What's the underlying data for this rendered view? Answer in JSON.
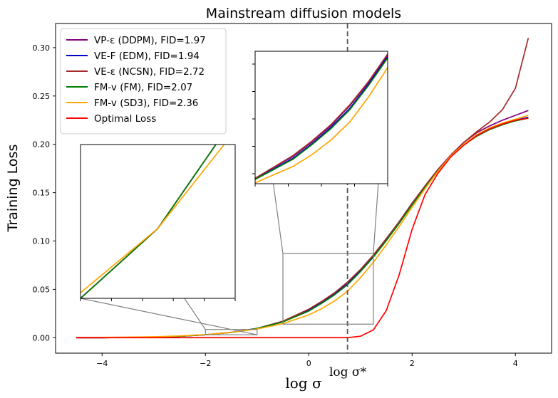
{
  "chart_data": {
    "type": "line",
    "title": "Mainstream diffusion models",
    "xlabel": "log σ",
    "ylabel": "Training Loss",
    "xlim": [
      -4.9,
      4.7
    ],
    "ylim": [
      -0.016,
      0.325
    ],
    "xticks": [
      -4,
      -2,
      0,
      2,
      4
    ],
    "xtick_labels": [
      "−4",
      "−2",
      "0",
      "2",
      "4"
    ],
    "yticks": [
      0.0,
      0.05,
      0.1,
      0.15,
      0.2,
      0.25,
      0.3
    ],
    "ytick_labels": [
      "0.00",
      "0.05",
      "0.10",
      "0.15",
      "0.20",
      "0.25",
      "0.30"
    ],
    "vline": {
      "x": 0.75,
      "label": "log σ*"
    },
    "legend_position": "upper-left",
    "x": [
      -4.5,
      -4.0,
      -3.5,
      -3.0,
      -2.5,
      -2.0,
      -1.5,
      -1.0,
      -0.5,
      0.0,
      0.25,
      0.5,
      0.75,
      1.0,
      1.25,
      1.5,
      1.75,
      2.0,
      2.25,
      2.5,
      2.75,
      3.0,
      3.25,
      3.5,
      3.75,
      4.0,
      4.25
    ],
    "series": [
      {
        "name": "VP-ε (DDPM), FID=1.97",
        "color": "#800080",
        "values": [
          0.0,
          0.0,
          0.0003,
          0.0006,
          0.0015,
          0.003,
          0.0055,
          0.0095,
          0.017,
          0.029,
          0.037,
          0.046,
          0.057,
          0.07,
          0.085,
          0.102,
          0.12,
          0.139,
          0.157,
          0.174,
          0.189,
          0.202,
          0.212,
          0.219,
          0.225,
          0.23,
          0.235
        ]
      },
      {
        "name": "VE-F (EDM), FID=1.94",
        "color": "#0000cd",
        "values": [
          0.0,
          0.0,
          0.0003,
          0.0006,
          0.0015,
          0.003,
          0.0055,
          0.0095,
          0.0165,
          0.028,
          0.036,
          0.045,
          0.0555,
          0.069,
          0.084,
          0.101,
          0.119,
          0.138,
          0.156,
          0.173,
          0.188,
          0.2,
          0.209,
          0.216,
          0.221,
          0.225,
          0.228
        ]
      },
      {
        "name": "VE-ε (NCSN), FID=2.72",
        "color": "#a52a2a",
        "values": [
          0.0,
          0.0,
          0.0003,
          0.0006,
          0.0015,
          0.003,
          0.0055,
          0.0095,
          0.017,
          0.0295,
          0.0375,
          0.0465,
          0.0575,
          0.0705,
          0.0855,
          0.1025,
          0.12,
          0.139,
          0.157,
          0.174,
          0.189,
          0.202,
          0.213,
          0.223,
          0.236,
          0.258,
          0.31
        ]
      },
      {
        "name": "FM-v (FM), FID=2.07",
        "color": "#008000",
        "values": [
          0.0,
          0.0,
          0.0003,
          0.0006,
          0.0015,
          0.003,
          0.0055,
          0.0095,
          0.0163,
          0.0275,
          0.0355,
          0.0443,
          0.0548,
          0.0683,
          0.0833,
          0.1003,
          0.1183,
          0.1373,
          0.1553,
          0.1723,
          0.1873,
          0.1993,
          0.2083,
          0.2153,
          0.2203,
          0.2243,
          0.227
        ]
      },
      {
        "name": "FM-v (SD3), FID=2.36",
        "color": "#ffa500",
        "values": [
          0.0,
          0.0003,
          0.0006,
          0.001,
          0.0018,
          0.0032,
          0.0055,
          0.009,
          0.0145,
          0.0235,
          0.03,
          0.038,
          0.048,
          0.062,
          0.078,
          0.096,
          0.115,
          0.135,
          0.154,
          0.172,
          0.188,
          0.2,
          0.21,
          0.217,
          0.222,
          0.226,
          0.23
        ]
      },
      {
        "name": "Optimal Loss",
        "color": "#ff0000",
        "values": [
          0.0,
          0.0,
          0.0,
          0.0,
          0.0,
          0.0,
          0.0,
          0.0,
          0.0,
          0.0,
          0.0,
          0.0,
          0.0,
          0.0015,
          0.008,
          0.028,
          0.065,
          0.112,
          0.148,
          0.17,
          0.187,
          0.199,
          0.209,
          0.216,
          0.221,
          0.225,
          0.227
        ]
      }
    ],
    "insets": [
      {
        "name": "left-inset",
        "xlim": [
          -2.0,
          -1.0
        ],
        "ylim": [
          0.003,
          0.0085
        ]
      },
      {
        "name": "center-inset",
        "xlim": [
          -0.5,
          1.25
        ],
        "ylim": [
          0.014,
          0.087
        ]
      }
    ]
  }
}
